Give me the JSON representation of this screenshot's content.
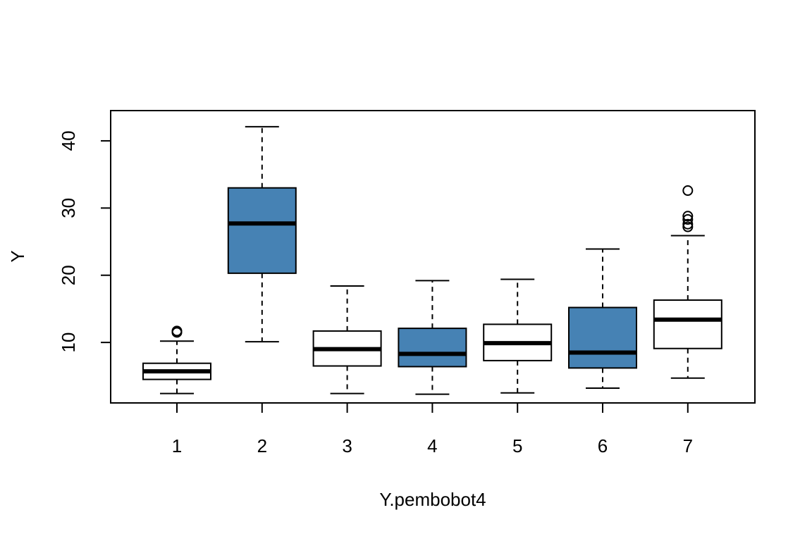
{
  "chart_data": {
    "type": "box",
    "title": "",
    "xlabel": "Y.pembobot4",
    "ylabel": "Y",
    "ylim": [
      1,
      44.5
    ],
    "y_ticks": [
      10,
      20,
      30,
      40
    ],
    "categories": [
      "1",
      "2",
      "3",
      "4",
      "5",
      "6",
      "7"
    ],
    "boxes": [
      {
        "category": "1",
        "whisker_low": 2.4,
        "q1": 4.5,
        "median": 5.7,
        "q3": 6.9,
        "whisker_high": 10.2,
        "outliers": [
          11.5,
          11.7
        ],
        "fill": "#ffffff"
      },
      {
        "category": "2",
        "whisker_low": 10.1,
        "q1": 20.3,
        "median": 27.7,
        "q3": 33.0,
        "whisker_high": 42.1,
        "outliers": [],
        "fill": "#4682b4"
      },
      {
        "category": "3",
        "whisker_low": 2.4,
        "q1": 6.5,
        "median": 9.0,
        "q3": 11.7,
        "whisker_high": 18.4,
        "outliers": [],
        "fill": "#ffffff"
      },
      {
        "category": "4",
        "whisker_low": 2.3,
        "q1": 6.4,
        "median": 8.3,
        "q3": 12.1,
        "whisker_high": 19.2,
        "outliers": [],
        "fill": "#4682b4"
      },
      {
        "category": "5",
        "whisker_low": 2.5,
        "q1": 7.3,
        "median": 9.9,
        "q3": 12.7,
        "whisker_high": 19.4,
        "outliers": [],
        "fill": "#ffffff"
      },
      {
        "category": "6",
        "whisker_low": 3.2,
        "q1": 6.2,
        "median": 8.5,
        "q3": 15.2,
        "whisker_high": 23.9,
        "outliers": [],
        "fill": "#4682b4"
      },
      {
        "category": "7",
        "whisker_low": 4.7,
        "q1": 9.1,
        "median": 13.4,
        "q3": 16.3,
        "whisker_high": 25.9,
        "outliers": [
          27.2,
          27.6,
          28.3,
          28.8,
          32.6
        ],
        "fill": "#ffffff"
      }
    ]
  }
}
